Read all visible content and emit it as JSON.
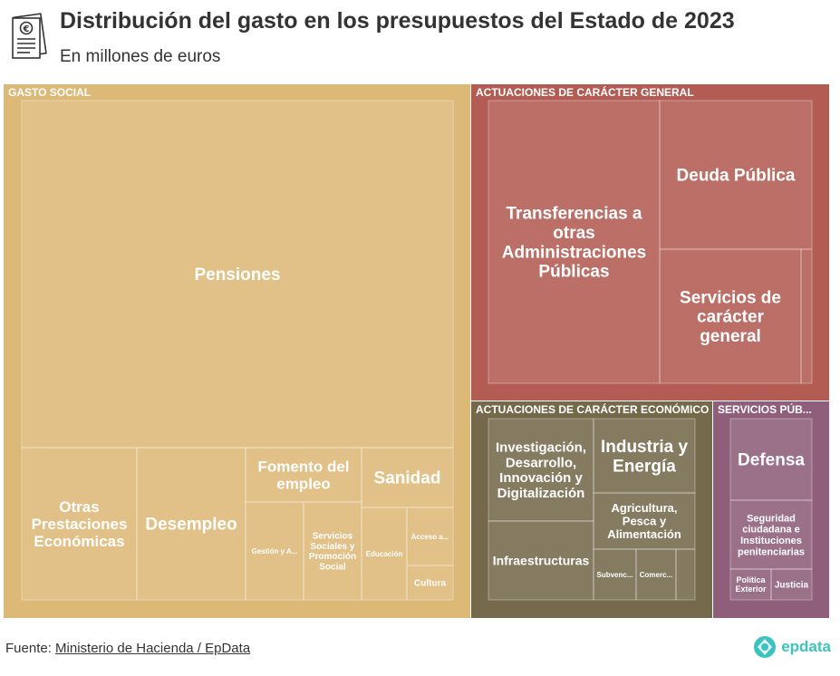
{
  "header": {
    "title": "Distribución del gasto en los presupuestos del Estado de 2023",
    "subtitle": "En millones de euros"
  },
  "footer": {
    "source_prefix": "Fuente:",
    "source_link": "Ministerio de Hacienda / EpData"
  },
  "brand": {
    "name": "epdata",
    "color": "#3cc3c0"
  },
  "chart_data": {
    "type": "treemap",
    "title": "Distribución del gasto en los presupuestos del Estado de 2023",
    "subtitle": "En millones de euros",
    "colors": {
      "gasto_social": "#ddb978",
      "general": "#b25c53",
      "economico": "#74694a",
      "servicios": "#8e5e7a",
      "border": "#ffffff"
    },
    "groups": [
      {
        "name": "GASTO SOCIAL",
        "color": "#ddb978",
        "leaves": [
          {
            "label": "Pensiones",
            "value": 190687
          },
          {
            "label": "Otras Prestaciones Económicas",
            "value": 18590
          },
          {
            "label": "Desempleo",
            "value": 22300
          },
          {
            "label": "Fomento del empleo",
            "value": 8600
          },
          {
            "label": "Gestión y A...",
            "value": 4200
          },
          {
            "label": "Servicios Sociales y Promoción Social",
            "value": 4800
          },
          {
            "label": "Sanidad",
            "value": 7100
          },
          {
            "label": "Educación",
            "value": 5300
          },
          {
            "label": "Acceso a...",
            "value": 3500
          },
          {
            "label": "Cultura",
            "value": 1800
          }
        ]
      },
      {
        "name": "ACTUACIONES DE CARÁCTER GENERAL",
        "color": "#b25c53",
        "leaves": [
          {
            "label": "Transferencias a otras Administraciones Públicas",
            "value": 68000
          },
          {
            "label": "Deuda Pública",
            "value": 31275
          },
          {
            "label": "Servicios de carácter general",
            "value": 32000
          },
          {
            "label": "",
            "value": 1000
          }
        ]
      },
      {
        "name": "ACTUACIONES DE CARÁCTER ECONÓMICO",
        "color": "#74694a",
        "leaves": [
          {
            "label": "Investigación, Desarrollo, Innovación y Digitalización",
            "value": 14000
          },
          {
            "label": "Infraestructuras",
            "value": 13500
          },
          {
            "label": "Industria y Energía",
            "value": 11000
          },
          {
            "label": "Agricultura, Pesca y Alimentación",
            "value": 9000
          },
          {
            "label": "Subvenc...",
            "value": 2500
          },
          {
            "label": "Comerc...",
            "value": 2200
          },
          {
            "label": "",
            "value": 900
          }
        ]
      },
      {
        "name": "SERVICIOS PÚB...",
        "color": "#8e5e7a",
        "leaves": [
          {
            "label": "Defensa",
            "value": 12800
          },
          {
            "label": "Seguridad ciudadana e Instituciones penitenciarias",
            "value": 10300
          },
          {
            "label": "Política Exterior",
            "value": 2200
          },
          {
            "label": "Justicia",
            "value": 2700
          }
        ]
      }
    ]
  }
}
